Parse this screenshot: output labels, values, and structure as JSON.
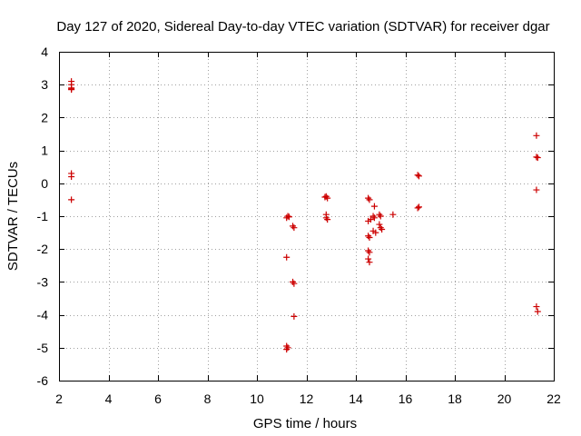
{
  "chart_data": {
    "type": "scatter",
    "title": "Day 127 of 2020, Sidereal Day-to-day VTEC variation (SDTVAR) for receiver dgar",
    "xlabel": "GPS time / hours",
    "ylabel": "SDTVAR / TECUs",
    "xlim": [
      2,
      22
    ],
    "ylim": [
      -6,
      4
    ],
    "x_ticks": [
      2,
      4,
      6,
      8,
      10,
      12,
      14,
      16,
      18,
      20,
      22
    ],
    "y_ticks": [
      -6,
      -5,
      -4,
      -3,
      -2,
      -1,
      0,
      1,
      2,
      3,
      4
    ],
    "grid": true,
    "marker": "+",
    "color": "#cc0000",
    "points": [
      [
        2.5,
        3.1
      ],
      [
        2.5,
        3.0
      ],
      [
        2.5,
        2.9
      ],
      [
        2.5,
        2.85
      ],
      [
        2.5,
        2.87
      ],
      [
        2.5,
        0.3
      ],
      [
        2.5,
        0.2
      ],
      [
        2.5,
        -0.5
      ],
      [
        11.2,
        -1.05
      ],
      [
        11.25,
        -1.0
      ],
      [
        11.3,
        -1.02
      ],
      [
        11.2,
        -2.25
      ],
      [
        11.45,
        -1.3
      ],
      [
        11.5,
        -1.35
      ],
      [
        11.45,
        -3.0
      ],
      [
        11.5,
        -3.05
      ],
      [
        11.5,
        -4.05
      ],
      [
        11.2,
        -4.95
      ],
      [
        11.25,
        -5.0
      ],
      [
        11.2,
        -5.05
      ],
      [
        12.8,
        -0.4
      ],
      [
        12.85,
        -0.45
      ],
      [
        12.75,
        -0.42
      ],
      [
        12.8,
        -0.95
      ],
      [
        12.8,
        -1.05
      ],
      [
        12.85,
        -1.1
      ],
      [
        14.5,
        -0.45
      ],
      [
        14.55,
        -0.5
      ],
      [
        14.5,
        -1.15
      ],
      [
        14.6,
        -1.1
      ],
      [
        14.5,
        -1.6
      ],
      [
        14.55,
        -1.65
      ],
      [
        14.5,
        -2.05
      ],
      [
        14.55,
        -2.1
      ],
      [
        14.5,
        -2.3
      ],
      [
        14.55,
        -2.4
      ],
      [
        14.75,
        -0.7
      ],
      [
        14.7,
        -1.0
      ],
      [
        14.75,
        -1.05
      ],
      [
        14.7,
        -1.45
      ],
      [
        14.8,
        -1.5
      ],
      [
        14.95,
        -0.95
      ],
      [
        15.0,
        -1.0
      ],
      [
        14.95,
        -1.25
      ],
      [
        15.0,
        -1.35
      ],
      [
        15.05,
        -1.4
      ],
      [
        15.5,
        -0.95
      ],
      [
        16.5,
        0.25
      ],
      [
        16.55,
        0.22
      ],
      [
        16.5,
        -0.75
      ],
      [
        16.55,
        -0.72
      ],
      [
        21.3,
        1.45
      ],
      [
        21.3,
        0.8
      ],
      [
        21.35,
        0.78
      ],
      [
        21.3,
        -0.2
      ],
      [
        21.3,
        -3.75
      ],
      [
        21.35,
        -3.9
      ]
    ]
  }
}
